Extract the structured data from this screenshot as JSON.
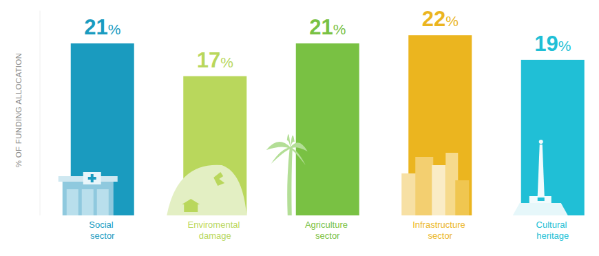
{
  "chart_data": {
    "type": "bar",
    "ylabel": "% OF FUNDING ALLOCATION",
    "categories": [
      "Social sector",
      "Enviromental damage",
      "Agriculture sector",
      "Infrastructure sector",
      "Cultural heritage"
    ],
    "values": [
      21,
      17,
      21,
      22,
      19
    ],
    "value_labels": [
      "21%",
      "17%",
      "21%",
      "22%",
      "19%"
    ],
    "colors": [
      "#1a9bbf",
      "#b9d75c",
      "#79c143",
      "#ebb51f",
      "#20bfd6"
    ],
    "ylim": [
      0,
      25
    ],
    "yticks": [],
    "grid": false,
    "data_labels": true,
    "tick_labels": "x"
  }
}
